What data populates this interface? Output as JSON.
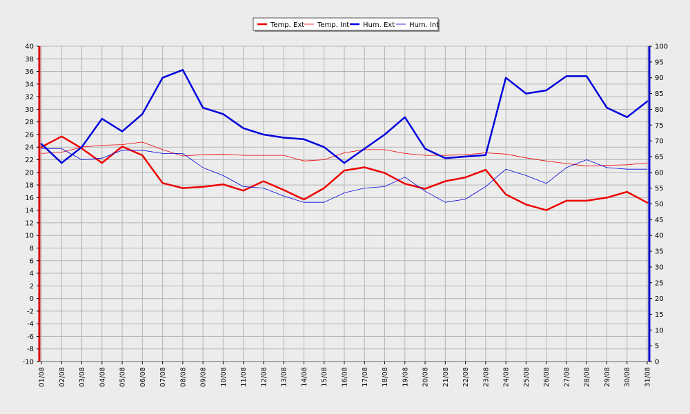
{
  "chart_data": {
    "type": "line",
    "categories": [
      "01/08",
      "02/08",
      "03/08",
      "04/08",
      "05/08",
      "06/08",
      "07/08",
      "08/08",
      "09/08",
      "10/08",
      "11/08",
      "12/08",
      "13/08",
      "14/08",
      "15/08",
      "16/08",
      "17/08",
      "18/08",
      "19/08",
      "20/08",
      "21/08",
      "22/08",
      "23/08",
      "24/08",
      "25/08",
      "26/08",
      "27/08",
      "28/08",
      "29/08",
      "30/08",
      "31/08"
    ],
    "y_left": {
      "min": -10,
      "max": 40,
      "step": 2,
      "color": "#dd0000"
    },
    "y_right": {
      "min": 0,
      "max": 100,
      "step": 5,
      "color": "#0000cc"
    },
    "grid": true,
    "legend_position": "top-center",
    "series": [
      {
        "name": "Temp. Ext",
        "axis": "left",
        "color": "#ee0000",
        "width": 2.5,
        "values": [
          24.0,
          25.7,
          23.8,
          21.5,
          24.1,
          22.7,
          18.3,
          17.5,
          17.7,
          18.1,
          17.1,
          18.6,
          17.2,
          15.7,
          17.5,
          20.3,
          20.8,
          19.9,
          18.2,
          17.4,
          18.6,
          19.2,
          20.4,
          16.5,
          14.9,
          14.0,
          15.5,
          15.5,
          16.0,
          16.9,
          15.2
        ]
      },
      {
        "name": "Temp. Int",
        "axis": "left",
        "color": "#ee0000",
        "width": 0.8,
        "values": [
          23.0,
          23.2,
          24.0,
          24.3,
          24.4,
          24.8,
          23.6,
          22.6,
          22.8,
          22.9,
          22.7,
          22.7,
          22.7,
          21.8,
          22.0,
          23.1,
          23.6,
          23.6,
          23.0,
          22.7,
          22.7,
          22.8,
          23.1,
          22.9,
          22.3,
          21.8,
          21.4,
          21.0,
          21.1,
          21.2,
          21.5
        ]
      },
      {
        "name": "Hum. Ext",
        "axis": "right",
        "color": "#0000dd",
        "width": 2.5,
        "values": [
          69.0,
          63.0,
          68.0,
          77.0,
          73.0,
          78.5,
          90.0,
          92.5,
          80.5,
          78.5,
          74.0,
          72.0,
          71.0,
          70.5,
          68.0,
          63.0,
          67.5,
          72.0,
          77.5,
          67.5,
          64.5,
          65.0,
          65.5,
          90.0,
          85.0,
          86.0,
          90.5,
          90.5,
          80.5,
          77.5,
          82.5
        ]
      },
      {
        "name": "Hum. Int",
        "axis": "right",
        "color": "#0000dd",
        "width": 0.8,
        "values": [
          67.5,
          67.5,
          64.0,
          64.5,
          67.0,
          67.0,
          66.0,
          66.0,
          61.5,
          59.0,
          55.5,
          55.0,
          52.5,
          50.5,
          50.5,
          53.5,
          55.0,
          55.5,
          58.5,
          54.0,
          50.5,
          51.5,
          55.5,
          61.0,
          59.0,
          56.5,
          61.5,
          64.0,
          61.5,
          61.0,
          61.0
        ]
      }
    ]
  }
}
